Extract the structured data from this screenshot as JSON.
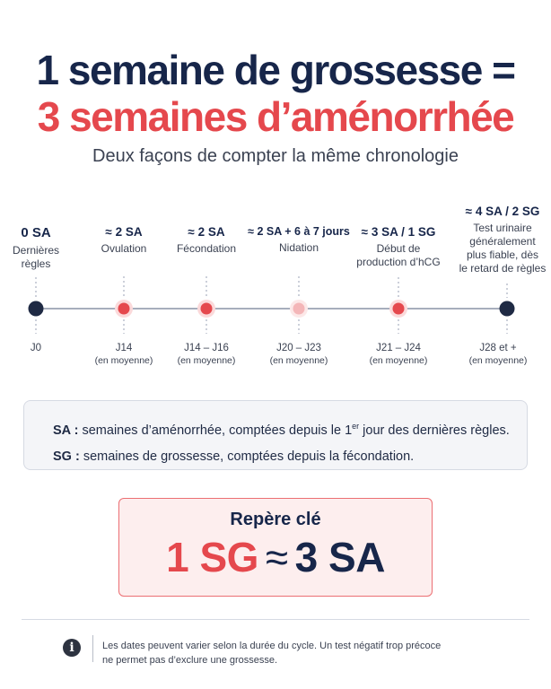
{
  "title": {
    "line1": "1 semaine de grossesse =",
    "line2": "3 semaines d’aménorrhée"
  },
  "subtitle": "Deux façons de compter la même chronologie",
  "colors": {
    "navy": "#17264a",
    "red": "#e5484d",
    "light_red": "#f4b6b8",
    "box_gray": "#f4f5f8"
  },
  "timeline": {
    "events": [
      {
        "heading": "0 SA",
        "desc": [
          "Dernières",
          "règles"
        ],
        "day": "J0",
        "note": "",
        "dot": "navy"
      },
      {
        "heading": "≈ 2 SA",
        "desc": [
          "Ovulation"
        ],
        "day": "J14",
        "note": "(en moyenne)",
        "dot": "red"
      },
      {
        "heading": "≈ 2 SA",
        "desc": [
          "Fécondation"
        ],
        "day": "J14 – J16",
        "note": "(en moyenne)",
        "dot": "red"
      },
      {
        "heading": "≈ 2 SA + 6 à 7 jours",
        "desc": [
          "Nidation"
        ],
        "day": "J20 – J23",
        "note": "(en moyenne)",
        "dot": "light_red"
      },
      {
        "heading": "≈ 3 SA / 1 SG",
        "desc": [
          "Début de",
          "production d’hCG"
        ],
        "day": "J21 – J24",
        "note": "(en moyenne)",
        "dot": "red"
      },
      {
        "heading": "≈ 4 SA / 2 SG",
        "desc": [
          "Test urinaire",
          "généralement",
          "plus fiable, dès",
          "le retard de règles"
        ],
        "day": "J28 et +",
        "note": "(en moyenne)",
        "dot": "navy"
      }
    ]
  },
  "definitions": {
    "sa_abbr": "SA :",
    "sa_text_before": " semaines d’aménorrhée, comptées depuis le 1",
    "sa_sup": "er",
    "sa_text_after": " jour des dernières règles.",
    "sg_abbr": "SG :",
    "sg_text": " semaines de grossesse, comptées depuis la fécondation."
  },
  "key": {
    "label": "Repère clé",
    "left": "1 SG",
    "op": "≈",
    "right": "3 SA"
  },
  "footer": {
    "icon": "info-icon",
    "line1": "Les dates peuvent varier selon la durée du cycle. Un test négatif trop précoce",
    "line2": "ne permet pas d’exclure une grossesse."
  }
}
